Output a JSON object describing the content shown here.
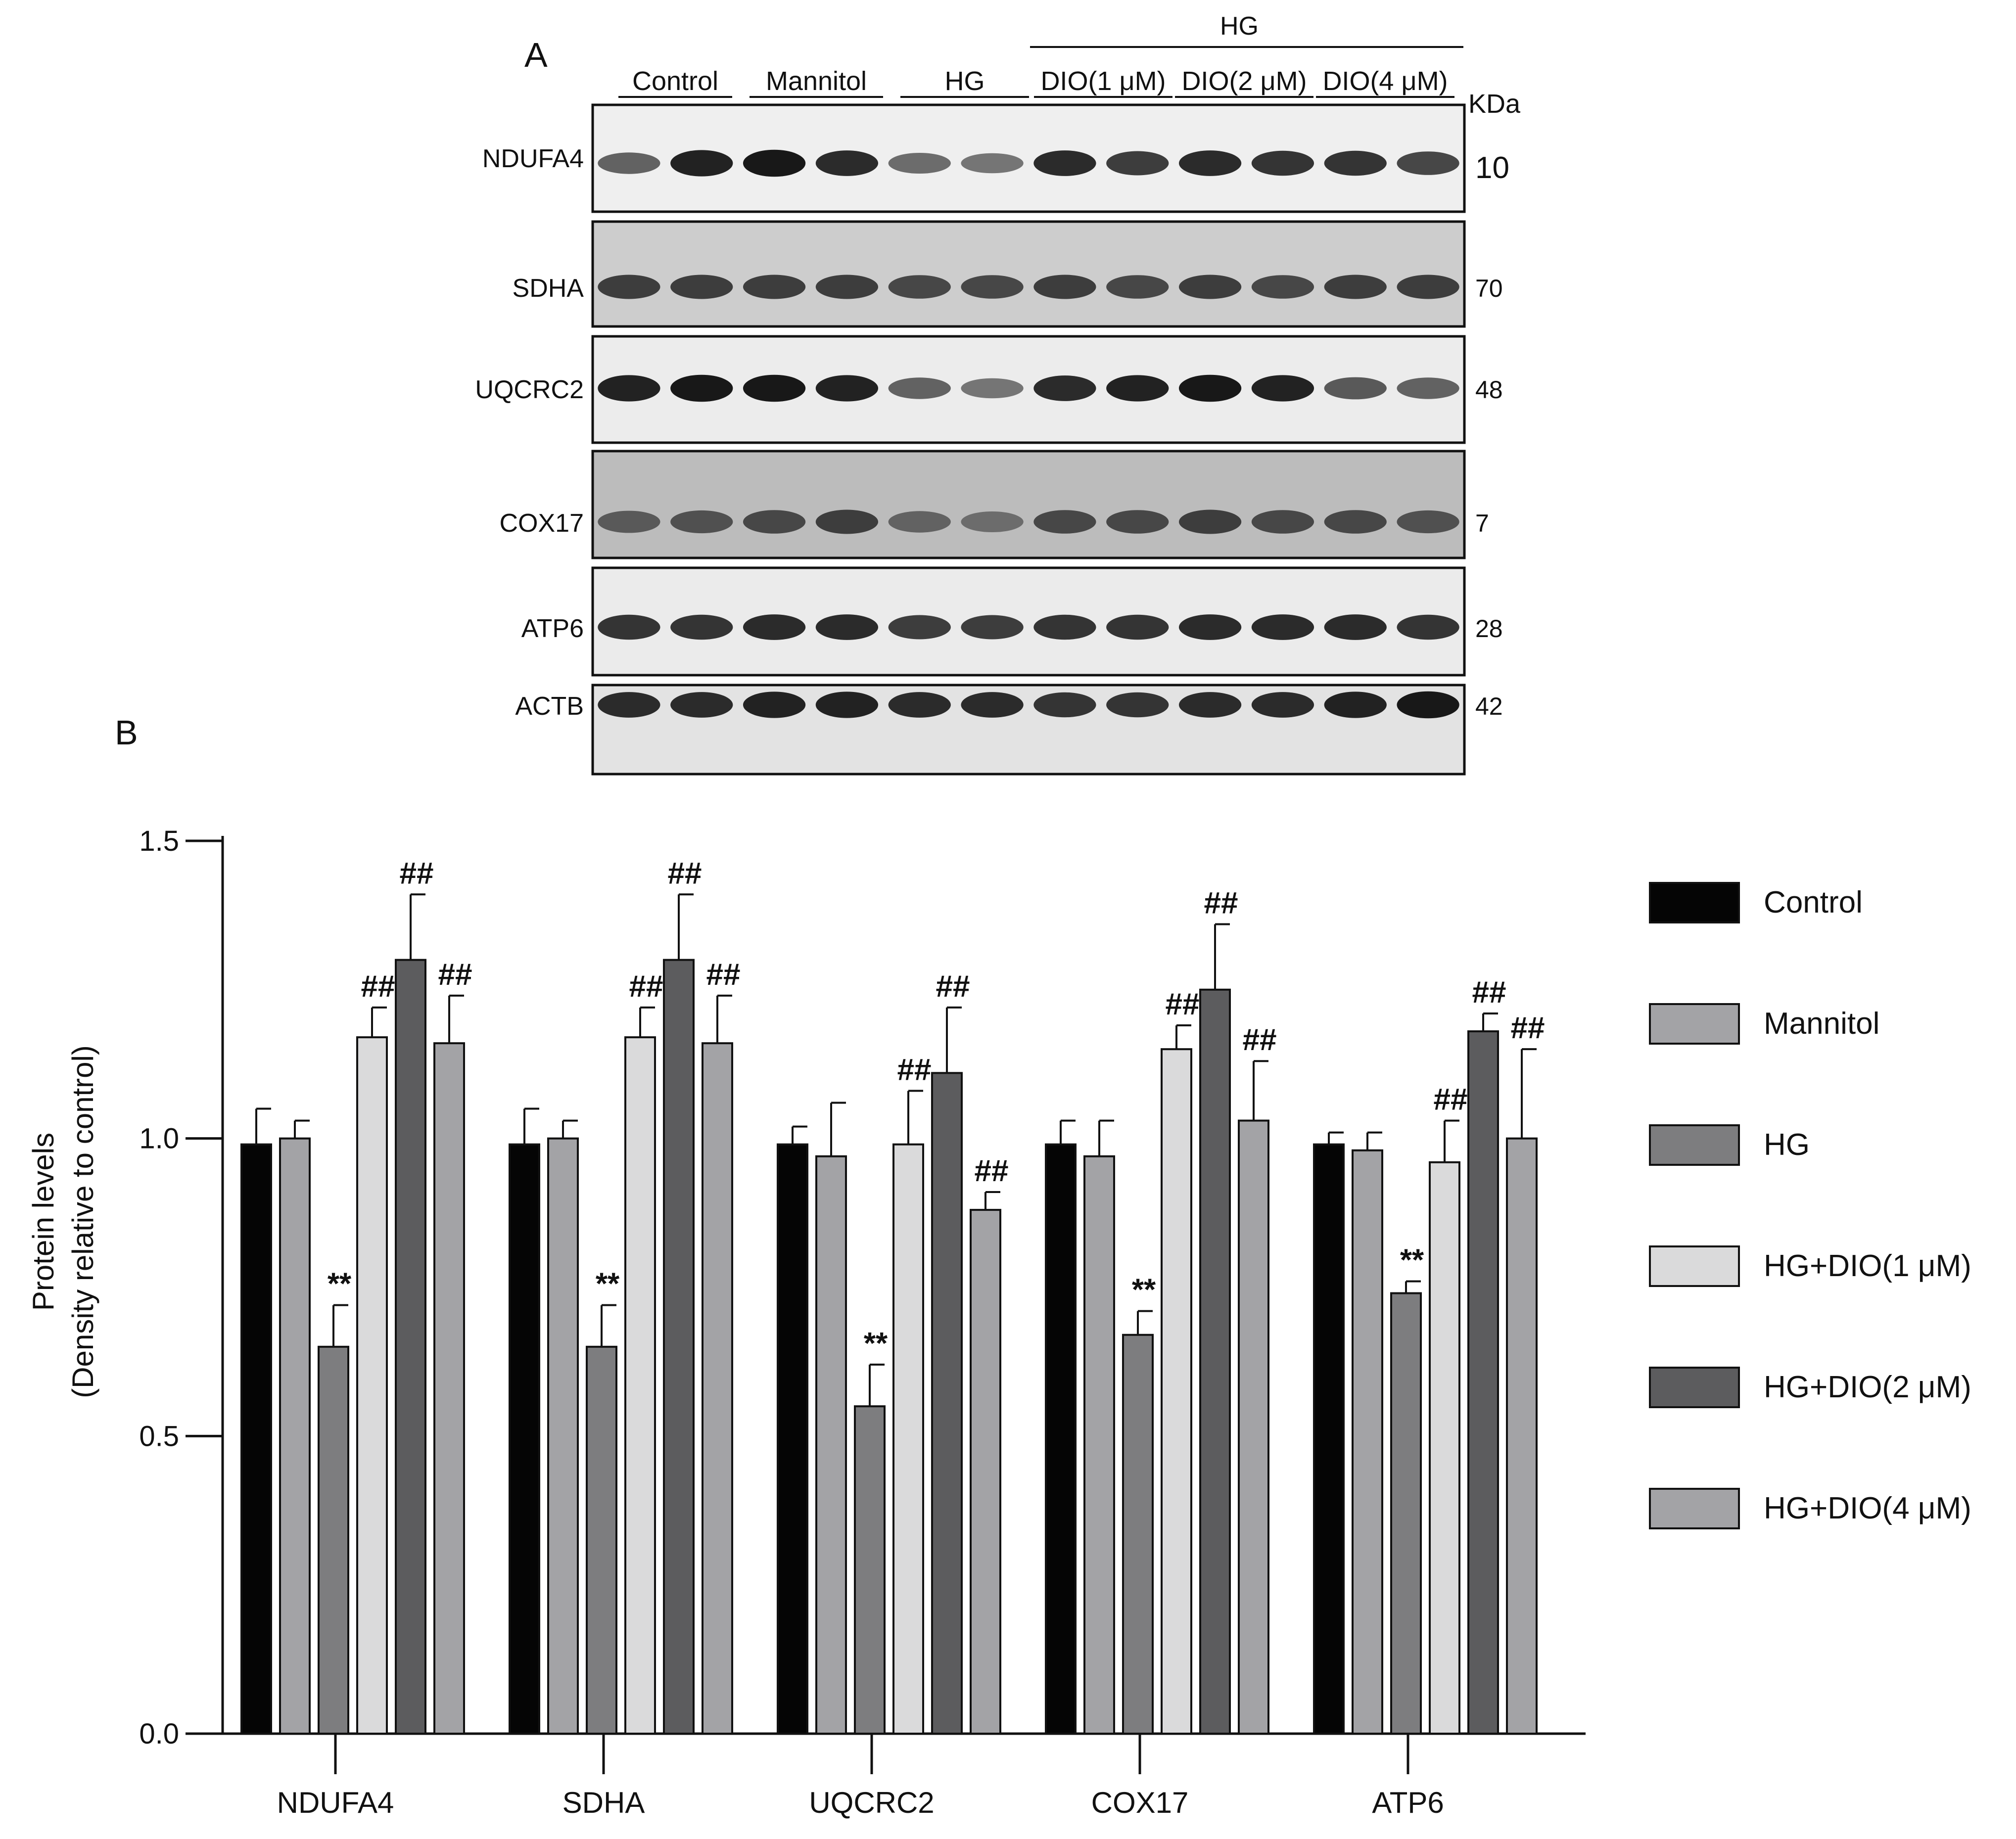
{
  "panel_a": {
    "label": "A",
    "group_labels": [
      "Control",
      "Mannitol",
      "HG",
      "DIO(1 μM)",
      "DIO(2 μM)",
      "DIO(4 μM)"
    ],
    "hg_bracket_label": "HG",
    "kda_label": "KDa",
    "blots": [
      {
        "protein": "NDUFA4",
        "kda": "10",
        "intensity": [
          0.55,
          0.9,
          0.95,
          0.85,
          0.5,
          0.45,
          0.85,
          0.75,
          0.85,
          0.8,
          0.8,
          0.7
        ]
      },
      {
        "protein": "SDHA",
        "kda": "70",
        "intensity": [
          0.75,
          0.75,
          0.75,
          0.75,
          0.7,
          0.7,
          0.75,
          0.7,
          0.75,
          0.7,
          0.75,
          0.75
        ]
      },
      {
        "protein": "UQCRC2",
        "kda": "48",
        "intensity": [
          0.9,
          0.95,
          0.95,
          0.9,
          0.55,
          0.45,
          0.85,
          0.9,
          0.95,
          0.9,
          0.6,
          0.55
        ]
      },
      {
        "protein": "COX17",
        "kda": "7",
        "intensity": [
          0.6,
          0.65,
          0.7,
          0.75,
          0.55,
          0.5,
          0.7,
          0.7,
          0.75,
          0.7,
          0.7,
          0.65
        ]
      },
      {
        "protein": "ATP6",
        "kda": "28",
        "intensity": [
          0.8,
          0.8,
          0.85,
          0.85,
          0.75,
          0.75,
          0.8,
          0.8,
          0.85,
          0.85,
          0.85,
          0.8
        ]
      },
      {
        "protein": "ACTB",
        "kda": "42",
        "intensity": [
          0.85,
          0.85,
          0.9,
          0.9,
          0.85,
          0.85,
          0.8,
          0.8,
          0.85,
          0.85,
          0.9,
          0.95
        ]
      }
    ]
  },
  "panel_b": {
    "label": "B"
  },
  "chart_data": {
    "type": "bar",
    "title": "",
    "ylabel": "Protein levels",
    "ylabel_line2": "(Density relative to control)",
    "xlabel": "",
    "ylim": [
      0,
      1.5
    ],
    "yticks": [
      0.0,
      0.5,
      1.0,
      1.5
    ],
    "ytick_labels": [
      "0.0",
      "0.5",
      "1.0",
      "1.5"
    ],
    "categories": [
      "NDUFA4",
      "SDHA",
      "UQCRC2",
      "COX17",
      "ATP6"
    ],
    "legend_position": "right",
    "series": [
      {
        "name": "Control",
        "color": "#050505",
        "values": [
          0.99,
          0.99,
          0.99,
          0.99,
          0.99
        ],
        "errors": [
          0.06,
          0.06,
          0.03,
          0.04,
          0.02
        ],
        "marks": [
          "",
          "",
          "",
          "",
          ""
        ]
      },
      {
        "name": "Mannitol",
        "color": "#a3a3a6",
        "values": [
          1.0,
          1.0,
          0.97,
          0.97,
          0.98
        ],
        "errors": [
          0.03,
          0.03,
          0.09,
          0.06,
          0.03
        ],
        "marks": [
          "",
          "",
          "",
          "",
          ""
        ]
      },
      {
        "name": "HG",
        "color": "#7d7d7f",
        "values": [
          0.65,
          0.65,
          0.55,
          0.67,
          0.74
        ],
        "errors": [
          0.07,
          0.07,
          0.07,
          0.04,
          0.02
        ],
        "marks": [
          "**",
          "**",
          "**",
          "**",
          "**"
        ]
      },
      {
        "name": "HG+DIO(1 μM)",
        "color": "#dadadb",
        "values": [
          1.17,
          1.17,
          0.99,
          1.15,
          0.96
        ],
        "errors": [
          0.05,
          0.05,
          0.09,
          0.04,
          0.07
        ],
        "marks": [
          "##",
          "##",
          "##",
          "##",
          "##"
        ]
      },
      {
        "name": "HG+DIO(2 μM)",
        "color": "#5c5c5e",
        "values": [
          1.3,
          1.3,
          1.11,
          1.25,
          1.18
        ],
        "errors": [
          0.11,
          0.11,
          0.11,
          0.11,
          0.03
        ],
        "marks": [
          "##",
          "##",
          "##",
          "##",
          "##"
        ]
      },
      {
        "name": "HG+DIO(4 μM)",
        "color": "#a3a3a6",
        "values": [
          1.16,
          1.16,
          0.88,
          1.03,
          1.0
        ],
        "errors": [
          0.08,
          0.08,
          0.03,
          0.1,
          0.15
        ],
        "marks": [
          "##",
          "##",
          "##",
          "##",
          "##"
        ]
      }
    ]
  }
}
